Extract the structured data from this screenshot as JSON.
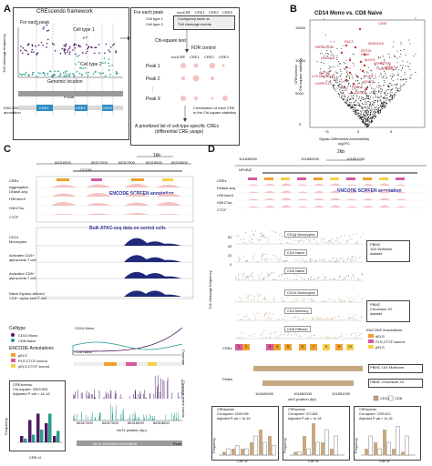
{
  "panels": {
    "a": {
      "letter": "A",
      "framework_title": "CREscendo framework",
      "for_each_peak": "For each peak",
      "cell_type_1": "Cell type 1",
      "cell_type_2": "Cell type 2",
      "genomic_location": "Genomic location",
      "peak_label": "Peak",
      "encode_annotation": "ENCODE\nannotation",
      "y_axis": "Tn5 cleavage frequency",
      "cre_labels": [
        "CRE1",
        "CRE2",
        "CRE3"
      ],
      "right_for_each_peak": "For each peak",
      "table_cols": [
        "nonCRE",
        "CRE1",
        "CRE2",
        "CRE3"
      ],
      "table_rows": [
        "Cell type 1",
        "Cell type 2"
      ],
      "contingency_1": "Contigency table on",
      "contingency_2": "Tn5 cleavage events",
      "chi_test": "Chi-square test",
      "fdr": "FDR control",
      "peak_rows": [
        "Peak 1",
        "Peak 2",
        "Peak X"
      ],
      "dots": "⋮",
      "contribution": "Contribution of each CRE\nto the Chi-square statistics",
      "prioritized_1": "A prioritized list of cell-type-specific CREs",
      "prioritized_2": "(differential CRE usage)"
    },
    "b": {
      "letter": "B",
      "title": "CD14 Mono vs. CD8 Naive",
      "ylabel": "CREscendo\nChi-square statistics",
      "xlabel": "Signac Differential Accessibility\nlog2FC",
      "xticks": [
        "−5",
        "0",
        "5"
      ],
      "yticks": [
        "0",
        "5000",
        "10000",
        "15000"
      ],
      "genes": [
        "CD55",
        "RAC2",
        "ANKDD1A",
        "NRSA2-AS1",
        "EEF2K",
        "CD80",
        "UMODL1",
        "ALDH2",
        "ARHGEF10",
        "ARMC1",
        "SAP30BP",
        "ALOX5",
        "LOC101929415",
        "PLEC",
        "HIVEP2-DT",
        "ATN1",
        "CXXC5",
        "RGL4"
      ]
    },
    "c": {
      "letter": "C",
      "scale": "1kb",
      "coords": [
        "66316500",
        "66317000",
        "66317500",
        "66318000",
        "66318500"
      ],
      "gene": "CD248",
      "track_labels": [
        "CREs",
        "Aggregated\nDNase-seq",
        "H3K4me3",
        "H3K27ac",
        "CTCF"
      ],
      "encode_screen": "ENCODE SCREEN annotation",
      "bulk_atac": "Bulk ATAC-seq data on sorted cells",
      "atac_labels": [
        "CD14\nMonocytes",
        "Activated CD4+\nalpha-beta T cell",
        "Activated CD8+\nalpha-beta T cell",
        "Naive thymus-derived\nCD8+ alpha-beta T cell"
      ],
      "celltype": "Celltype",
      "legend": [
        "CD14 Mono",
        "CD8 Naive"
      ],
      "encode_annotations": "ENCODE Annotations",
      "annot_types": [
        "pELS",
        "PLS,CTCF-bound",
        "pELS,CTCF-bound",
        "pELS"
      ],
      "coverage": "Coverage",
      "cleavage": "Cleavage event counts",
      "chr_position": "chr11 position (bp)",
      "xticks_bottom": [
        "66317000",
        "66317500",
        "66318000",
        "66318500"
      ],
      "peak_name": "chr11-66316918-66318828",
      "peak": "Peak",
      "stats_1": "CREscendo",
      "stats_2": "Chi-square: 3353.924",
      "stats_3": "Adjusted P-val < 1e-16",
      "cre_id": "CRE id",
      "frequency": "Frequency",
      "bar_ids": [
        "0",
        "1",
        "2",
        "3",
        "4"
      ],
      "bar_yticks": [
        "0.0",
        "0.2",
        "0.4"
      ]
    },
    "d": {
      "letter": "D",
      "scale": "2kb",
      "coords": [
        "101848000",
        "101850000",
        "101851200"
      ],
      "gene": "NFKBIZ",
      "track_labels": [
        "CREs",
        "DNase-seq",
        "H3K4me3",
        "H3K27ac",
        "CTCF"
      ],
      "encode_screen": "ENCODE SCREEN annotation",
      "cell_labels": [
        "CD14 Monocytes",
        "CD4 Naive",
        "CD8 Naive",
        "CD14 Monocytes",
        "CD4 Memory",
        "CD8 Effector"
      ],
      "pbmc_10x": "PBMC\n10X Multiome\ndataset",
      "pbmc_chromium": "PBMC\nChromium X2\ndataset",
      "ylabel": "Tn5 cleavage frequency",
      "yticks_top": [
        "0",
        "20",
        "40",
        "60"
      ],
      "encode_annotations": "ENCODE Annotations",
      "annot_types": [
        "dELS",
        "PLS,CTCF-bound",
        "pELS"
      ],
      "cres": "CREs",
      "cre_numbers": [
        "1",
        "2",
        "3",
        "4",
        "5",
        "6",
        "7",
        "8",
        "9",
        "10"
      ],
      "peaks": "Peaks",
      "peak_tags": [
        "PBMC 10X Multiome",
        "PBMC Chromium X2"
      ],
      "chr_position": "chr3 position (bp)",
      "xticks": [
        "101849000",
        "101850000",
        "101851000"
      ],
      "legend": [
        "CD14",
        "CD8"
      ],
      "stats": [
        {
          "l1": "CREscendo",
          "l2": "Chi-square: 2299.095",
          "l3": "Adjusted P-val < 1e-16"
        },
        {
          "l1": "CREscendo",
          "l2": "Chi-square: 372.853",
          "l3": "Adjusted P-val < 1e-16"
        },
        {
          "l1": "CREscendo",
          "l2": "Chi-square: 1290.512",
          "l3": "Adjusted P-val < 1e-16"
        }
      ],
      "cre_id": "CRE id",
      "frequency": "Frequency"
    }
  },
  "colors": {
    "purple": "#4b1a63",
    "teal": "#2a9d8f",
    "red": "#c0392b",
    "navy": "#1f2a7a",
    "pink": "#f4c2c2",
    "orange": "#f0a030",
    "yellow": "#f5d04a",
    "magenta": "#d65a9c",
    "tan": "#c8a882"
  }
}
